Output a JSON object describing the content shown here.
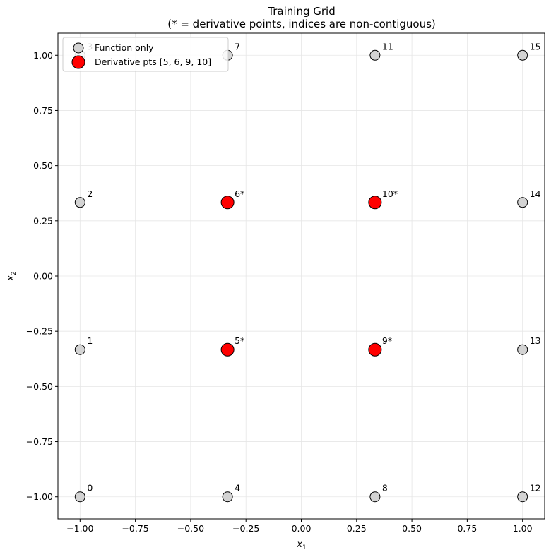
{
  "chart_data": {
    "type": "scatter",
    "title": "Training Grid",
    "subtitle": "(* = derivative points, indices are non-contiguous)",
    "xlabel_base": "x",
    "xlabel_sub": "1",
    "ylabel_base": "x",
    "ylabel_sub": "2",
    "xlim": [
      -1.1,
      1.1
    ],
    "ylim": [
      -1.1,
      1.1
    ],
    "grid": true,
    "legend_position": "top-left",
    "xticks": [
      -1.0,
      -0.75,
      -0.5,
      -0.25,
      0.0,
      0.25,
      0.5,
      0.75,
      1.0
    ],
    "xtick_labels": [
      "−1.00",
      "−0.75",
      "−0.50",
      "−0.25",
      "0.00",
      "0.25",
      "0.50",
      "0.75",
      "1.00"
    ],
    "yticks": [
      -1.0,
      -0.75,
      -0.5,
      -0.25,
      0.0,
      0.25,
      0.5,
      0.75,
      1.0
    ],
    "ytick_labels": [
      "−1.00",
      "−0.75",
      "−0.50",
      "−0.25",
      "0.00",
      "0.25",
      "0.50",
      "0.75",
      "1.00"
    ],
    "series": [
      {
        "name": "Function only",
        "color": "#d3d3d3",
        "edge_color": "#000000",
        "points": [
          {
            "x": -1.0,
            "y": -1.0,
            "label": "0"
          },
          {
            "x": -1.0,
            "y": -0.3333,
            "label": "1"
          },
          {
            "x": -1.0,
            "y": 0.3333,
            "label": "2"
          },
          {
            "x": -1.0,
            "y": 1.0,
            "label": "3"
          },
          {
            "x": -0.3333,
            "y": -1.0,
            "label": "4"
          },
          {
            "x": -0.3333,
            "y": 1.0,
            "label": "7"
          },
          {
            "x": 0.3333,
            "y": -1.0,
            "label": "8"
          },
          {
            "x": 0.3333,
            "y": 1.0,
            "label": "11"
          },
          {
            "x": 1.0,
            "y": -1.0,
            "label": "12"
          },
          {
            "x": 1.0,
            "y": -0.3333,
            "label": "13"
          },
          {
            "x": 1.0,
            "y": 0.3333,
            "label": "14"
          },
          {
            "x": 1.0,
            "y": 1.0,
            "label": "15"
          }
        ]
      },
      {
        "name": "Derivative pts [5, 6, 9, 10]",
        "color": "#ff0000",
        "edge_color": "#000000",
        "points": [
          {
            "x": -0.3333,
            "y": -0.3333,
            "label": "5*"
          },
          {
            "x": -0.3333,
            "y": 0.3333,
            "label": "6*"
          },
          {
            "x": 0.3333,
            "y": -0.3333,
            "label": "9*"
          },
          {
            "x": 0.3333,
            "y": 0.3333,
            "label": "10*"
          }
        ]
      }
    ]
  }
}
